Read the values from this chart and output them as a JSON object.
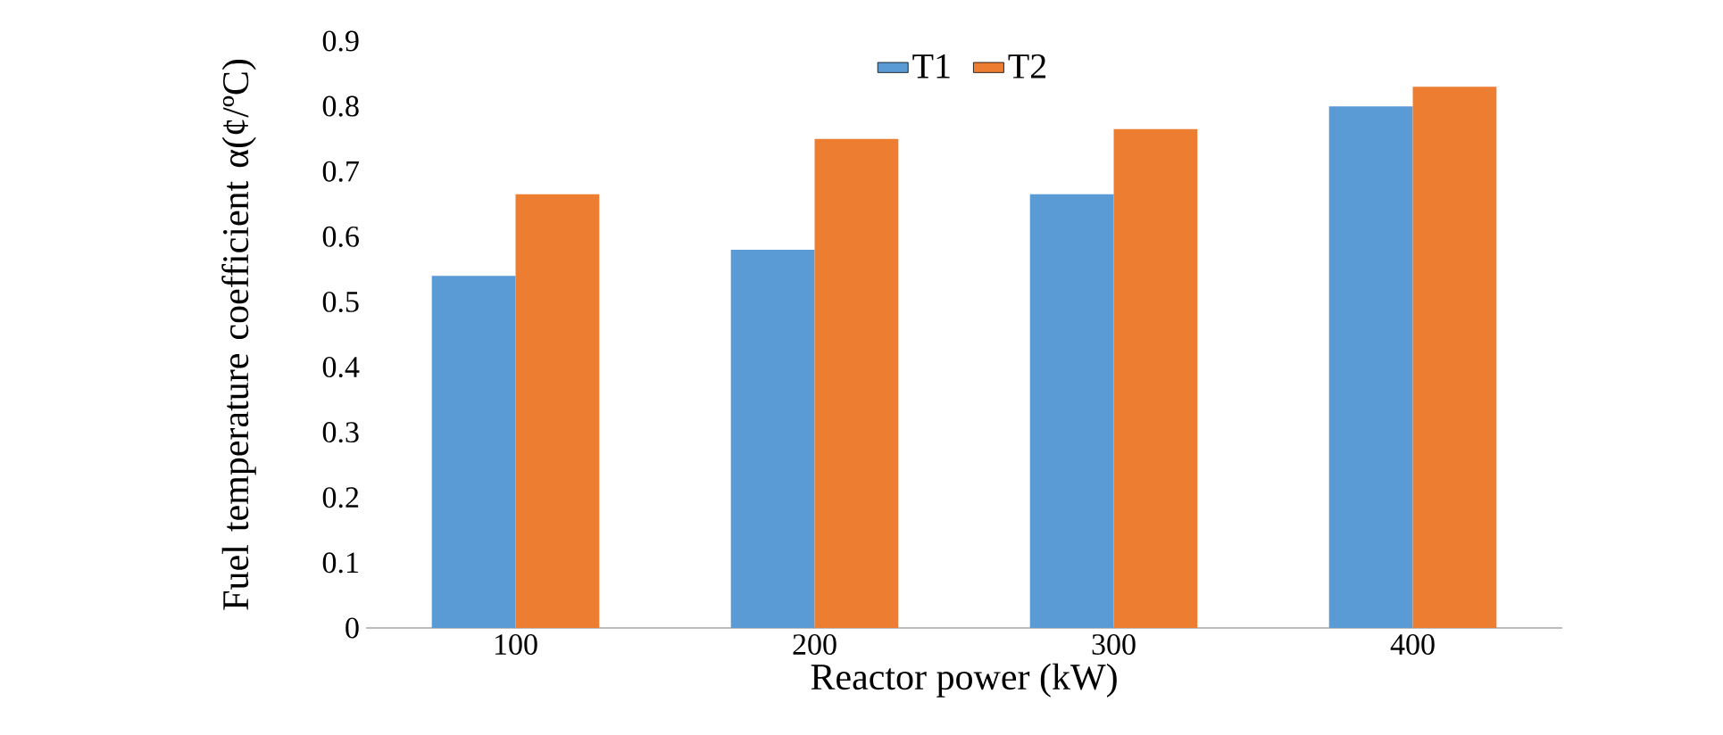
{
  "chart_data": {
    "type": "bar",
    "xlabel": "Reactor power (kW)",
    "ylabel": "Fuel temperature coefficient α(¢/ºC)",
    "categories": [
      "100",
      "200",
      "300",
      "400"
    ],
    "series": [
      {
        "name": "T1",
        "color": "#5b9bd5",
        "values": [
          0.54,
          0.58,
          0.665,
          0.8
        ]
      },
      {
        "name": "T2",
        "color": "#ed7d31",
        "values": [
          0.665,
          0.75,
          0.765,
          0.83
        ]
      }
    ],
    "ylim": [
      0,
      0.9
    ],
    "yticks": [
      0,
      0.1,
      0.2,
      0.3,
      0.4,
      0.5,
      0.6,
      0.7,
      0.8,
      0.9
    ],
    "grid": false,
    "legend": "top"
  }
}
